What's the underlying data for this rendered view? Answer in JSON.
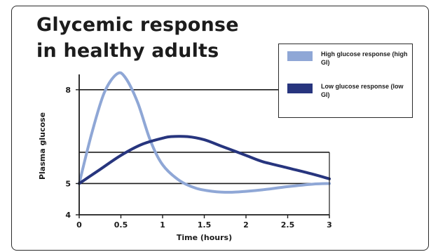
{
  "chart_data": {
    "type": "line",
    "title_line1": "Glycemic response",
    "title_line2": "in healthy adults",
    "xlabel": "Time (hours)",
    "ylabel": "Plasma glucose",
    "xlim": [
      0,
      3
    ],
    "ylim": [
      4,
      8.4
    ],
    "x_ticks": [
      0,
      0.5,
      1,
      1.5,
      2,
      2.5,
      3
    ],
    "x_tick_labels": [
      "0",
      "0.5",
      "1",
      "1.5",
      "2",
      "2.5",
      "3"
    ],
    "y_ticks": [
      4,
      5,
      8
    ],
    "y_tick_labels": [
      "4",
      "5",
      "8"
    ],
    "gridlines_y": [
      8,
      6,
      5
    ],
    "legend_placement": "top-right",
    "series": [
      {
        "name": "High glucose response (high GI)",
        "color": "#8fa7d6",
        "x": [
          0,
          0.15,
          0.3,
          0.45,
          0.55,
          0.7,
          0.85,
          1.0,
          1.2,
          1.4,
          1.6,
          1.8,
          2.0,
          2.2,
          2.5,
          2.8,
          3.0
        ],
        "y": [
          5.0,
          6.6,
          7.9,
          8.5,
          8.4,
          7.6,
          6.4,
          5.6,
          5.1,
          4.85,
          4.75,
          4.72,
          4.75,
          4.8,
          4.9,
          4.98,
          5.0
        ]
      },
      {
        "name": "Low glucose response (low GI)",
        "color": "#27357e",
        "x": [
          0,
          0.25,
          0.5,
          0.75,
          1.0,
          1.1,
          1.3,
          1.5,
          1.7,
          2.0,
          2.2,
          2.5,
          2.8,
          3.0
        ],
        "y": [
          5.0,
          5.45,
          5.9,
          6.25,
          6.45,
          6.5,
          6.5,
          6.4,
          6.2,
          5.9,
          5.7,
          5.5,
          5.3,
          5.15
        ]
      }
    ]
  }
}
